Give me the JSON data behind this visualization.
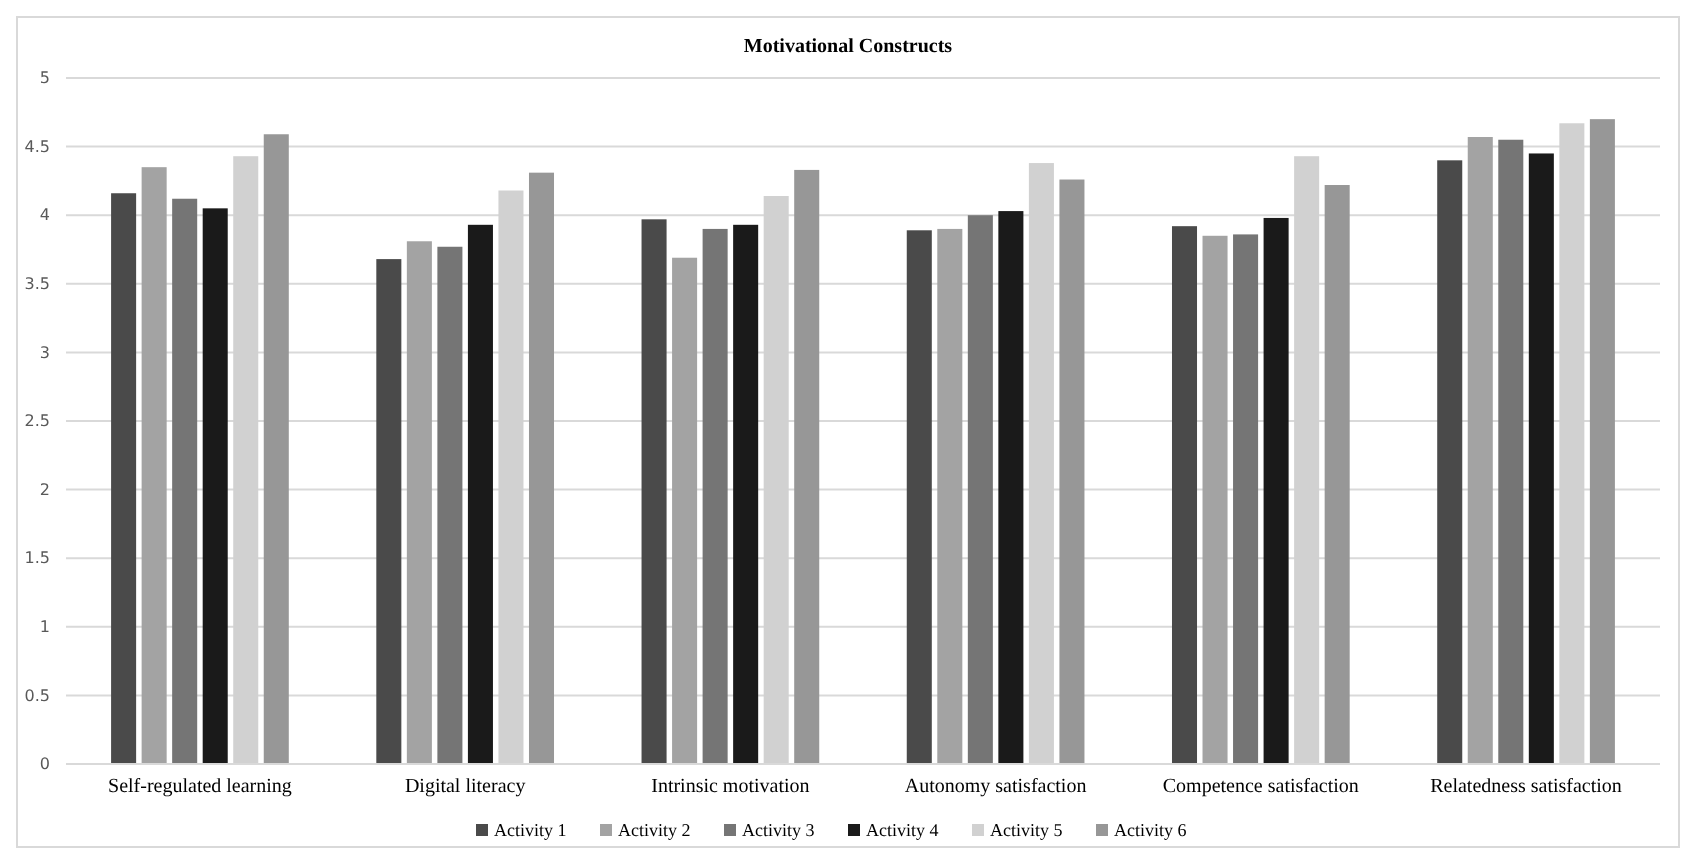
{
  "chart_data": {
    "type": "bar",
    "title": "Motivational Constructs",
    "categories": [
      "Self-regulated learning",
      "Digital literacy",
      "Intrinsic motivation",
      "Autonomy satisfaction",
      "Competence satisfaction",
      "Relatedness satisfaction"
    ],
    "series": [
      {
        "name": "Activity 1",
        "color": "#4a4a4a",
        "values": [
          4.16,
          3.68,
          3.97,
          3.89,
          3.92,
          4.4
        ]
      },
      {
        "name": "Activity 2",
        "color": "#a3a3a3",
        "values": [
          4.35,
          3.81,
          3.69,
          3.9,
          3.85,
          4.57
        ]
      },
      {
        "name": "Activity 3",
        "color": "#757575",
        "values": [
          4.12,
          3.77,
          3.9,
          4.0,
          3.86,
          4.55
        ]
      },
      {
        "name": "Activity 4",
        "color": "#1a1a1a",
        "values": [
          4.05,
          3.93,
          3.93,
          4.03,
          3.98,
          4.45
        ]
      },
      {
        "name": "Activity 5",
        "color": "#d1d1d1",
        "values": [
          4.43,
          4.18,
          4.14,
          4.38,
          4.43,
          4.67
        ]
      },
      {
        "name": "Activity 6",
        "color": "#979797",
        "values": [
          4.59,
          4.31,
          4.33,
          4.26,
          4.22,
          4.7
        ]
      }
    ],
    "ylim": [
      0,
      5
    ],
    "yticks": [
      0,
      0.5,
      1,
      1.5,
      2,
      2.5,
      3,
      3.5,
      4,
      4.5,
      5
    ],
    "grid": "y",
    "legend": "bottom"
  }
}
